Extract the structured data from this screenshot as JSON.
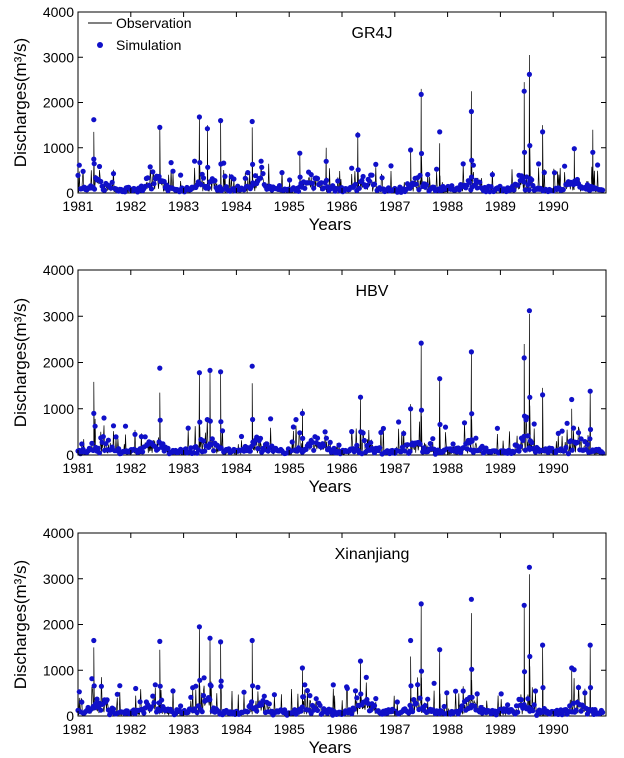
{
  "legend": {
    "observation_label": "Observation",
    "simulation_label": "Simulation",
    "observation_color": "#000000",
    "simulation_color": "#1010c8"
  },
  "chart_data": [
    {
      "type": "line",
      "title": "GR4J",
      "xlabel": "Years",
      "ylabel": "Discharges(m³/s)",
      "xlim": [
        1981,
        1991
      ],
      "ylim": [
        0,
        4000
      ],
      "xticks": [
        1981,
        1982,
        1983,
        1984,
        1985,
        1986,
        1987,
        1988,
        1989,
        1990
      ],
      "yticks": [
        0,
        1000,
        2000,
        3000,
        4000
      ],
      "legend": "top-left",
      "peaks": [
        {
          "x": 1981.3,
          "obs": 1350,
          "sim": 1620
        },
        {
          "x": 1982.55,
          "obs": 1480,
          "sim": 1450
        },
        {
          "x": 1983.3,
          "obs": 1700,
          "sim": 1680
        },
        {
          "x": 1983.45,
          "obs": 1500,
          "sim": 1420
        },
        {
          "x": 1983.7,
          "obs": 1650,
          "sim": 1600
        },
        {
          "x": 1984.3,
          "obs": 1450,
          "sim": 1580
        },
        {
          "x": 1985.2,
          "obs": 900,
          "sim": 880
        },
        {
          "x": 1985.7,
          "obs": 1000,
          "sim": 700
        },
        {
          "x": 1986.3,
          "obs": 1350,
          "sim": 1280
        },
        {
          "x": 1987.3,
          "obs": 1000,
          "sim": 950
        },
        {
          "x": 1987.5,
          "obs": 2300,
          "sim": 2180
        },
        {
          "x": 1987.85,
          "obs": 1100,
          "sim": 1350
        },
        {
          "x": 1988.45,
          "obs": 2250,
          "sim": 1800
        },
        {
          "x": 1989.45,
          "obs": 2450,
          "sim": 2250
        },
        {
          "x": 1989.55,
          "obs": 3050,
          "sim": 2620
        },
        {
          "x": 1989.8,
          "obs": 1500,
          "sim": 1350
        },
        {
          "x": 1990.4,
          "obs": 1000,
          "sim": 980
        },
        {
          "x": 1990.75,
          "obs": 1400,
          "sim": 900
        }
      ]
    },
    {
      "type": "line",
      "title": "HBV",
      "xlabel": "Years",
      "ylabel": "Discharges(m³/s)",
      "xlim": [
        1981,
        1991
      ],
      "ylim": [
        0,
        4000
      ],
      "xticks": [
        1981,
        1982,
        1983,
        1984,
        1985,
        1986,
        1987,
        1988,
        1989,
        1990
      ],
      "yticks": [
        0,
        1000,
        2000,
        3000,
        4000
      ],
      "peaks": [
        {
          "x": 1981.3,
          "obs": 1580,
          "sim": 900
        },
        {
          "x": 1982.55,
          "obs": 1350,
          "sim": 1880
        },
        {
          "x": 1983.3,
          "obs": 1750,
          "sim": 1780
        },
        {
          "x": 1983.5,
          "obs": 1850,
          "sim": 1830
        },
        {
          "x": 1983.7,
          "obs": 1750,
          "sim": 1800
        },
        {
          "x": 1984.3,
          "obs": 1550,
          "sim": 1920
        },
        {
          "x": 1985.25,
          "obs": 1000,
          "sim": 900
        },
        {
          "x": 1986.35,
          "obs": 1250,
          "sim": 1250
        },
        {
          "x": 1987.3,
          "obs": 1100,
          "sim": 1000
        },
        {
          "x": 1987.5,
          "obs": 2400,
          "sim": 2420
        },
        {
          "x": 1987.85,
          "obs": 1700,
          "sim": 1650
        },
        {
          "x": 1988.45,
          "obs": 2200,
          "sim": 2230
        },
        {
          "x": 1989.45,
          "obs": 2400,
          "sim": 2100
        },
        {
          "x": 1989.55,
          "obs": 3050,
          "sim": 3120
        },
        {
          "x": 1989.8,
          "obs": 1450,
          "sim": 1300
        },
        {
          "x": 1990.35,
          "obs": 1000,
          "sim": 1200
        },
        {
          "x": 1990.7,
          "obs": 1380,
          "sim": 1380
        }
      ]
    },
    {
      "type": "line",
      "title": "Xinanjiang",
      "xlabel": "Years",
      "ylabel": "Discharges(m³/s)",
      "xlim": [
        1981,
        1991
      ],
      "ylim": [
        0,
        4000
      ],
      "xticks": [
        1981,
        1982,
        1983,
        1984,
        1985,
        1986,
        1987,
        1988,
        1989,
        1990
      ],
      "yticks": [
        0,
        1000,
        2000,
        3000,
        4000
      ],
      "peaks": [
        {
          "x": 1981.3,
          "obs": 1500,
          "sim": 1650
        },
        {
          "x": 1982.55,
          "obs": 1450,
          "sim": 1630
        },
        {
          "x": 1983.3,
          "obs": 1900,
          "sim": 1950
        },
        {
          "x": 1983.5,
          "obs": 1700,
          "sim": 1700
        },
        {
          "x": 1983.7,
          "obs": 1650,
          "sim": 1620
        },
        {
          "x": 1984.3,
          "obs": 1600,
          "sim": 1650
        },
        {
          "x": 1985.25,
          "obs": 1050,
          "sim": 1050
        },
        {
          "x": 1986.35,
          "obs": 1250,
          "sim": 1200
        },
        {
          "x": 1987.3,
          "obs": 1300,
          "sim": 1650
        },
        {
          "x": 1987.5,
          "obs": 2400,
          "sim": 2450
        },
        {
          "x": 1987.85,
          "obs": 1400,
          "sim": 1450
        },
        {
          "x": 1988.45,
          "obs": 2250,
          "sim": 2550
        },
        {
          "x": 1989.45,
          "obs": 2400,
          "sim": 2420
        },
        {
          "x": 1989.55,
          "obs": 3100,
          "sim": 3250
        },
        {
          "x": 1989.8,
          "obs": 1500,
          "sim": 1550
        },
        {
          "x": 1990.35,
          "obs": 1000,
          "sim": 1050
        },
        {
          "x": 1990.7,
          "obs": 1500,
          "sim": 1550
        }
      ]
    }
  ]
}
